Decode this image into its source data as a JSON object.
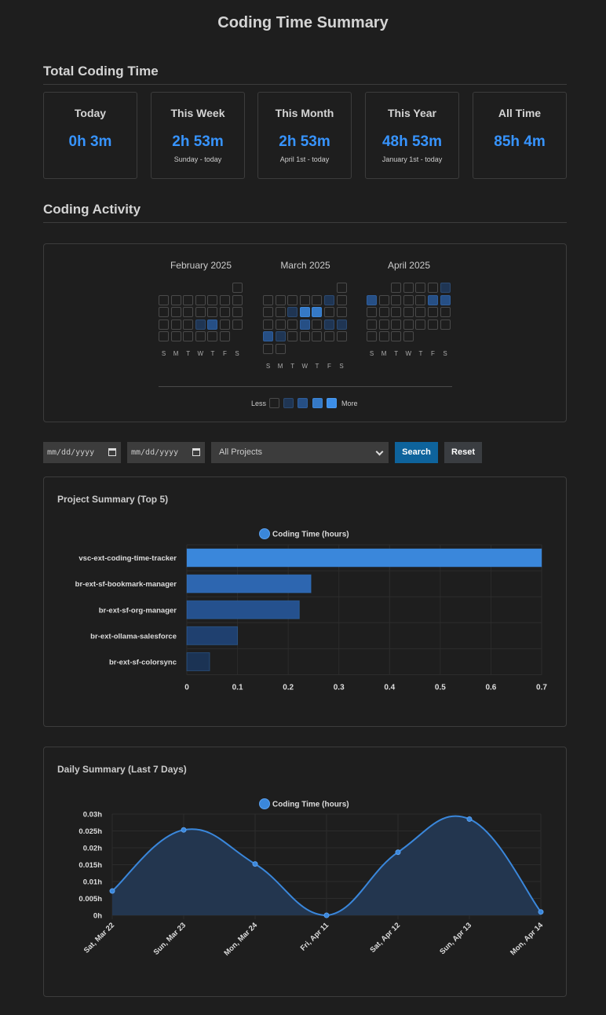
{
  "page_title": "Coding Time Summary",
  "total_section_title": "Total Coding Time",
  "stats": [
    {
      "label": "Today",
      "value": "0h 3m",
      "sub": ""
    },
    {
      "label": "This Week",
      "value": "2h 53m",
      "sub": "Sunday - today"
    },
    {
      "label": "This Month",
      "value": "2h 53m",
      "sub": "April 1st - today"
    },
    {
      "label": "This Year",
      "value": "48h 53m",
      "sub": "January 1st - today"
    },
    {
      "label": "All Time",
      "value": "85h 4m",
      "sub": ""
    }
  ],
  "activity_section_title": "Coding Activity",
  "heatmap": {
    "months": [
      {
        "label": "February 2025",
        "first_weekday": 6,
        "days": 28,
        "levels": {
          "19": 1,
          "20": 2
        }
      },
      {
        "label": "March 2025",
        "first_weekday": 6,
        "days": 31,
        "levels": {
          "7": 1,
          "11": 1,
          "12": 3,
          "13": 3,
          "19": 2,
          "21": 1,
          "22": 1,
          "23": 2,
          "24": 1
        }
      },
      {
        "label": "April 2025",
        "first_weekday": 2,
        "days": 30,
        "levels": {
          "5": 1,
          "6": 2,
          "11": 2,
          "12": 2
        }
      }
    ],
    "weekday_letters": [
      "S",
      "M",
      "T",
      "W",
      "T",
      "F",
      "S"
    ],
    "legend_less": "Less",
    "legend_more": "More",
    "colors": [
      "#1e1e1e",
      "#1f3553",
      "#264f85",
      "#3579c6",
      "#3c8ee8"
    ]
  },
  "filters": {
    "start_date_placeholder": "mm/dd/yyyy",
    "end_date_placeholder": "mm/dd/yyyy",
    "project_selected": "All Projects",
    "search_label": "Search",
    "reset_label": "Reset"
  },
  "project_summary": {
    "title": "Project Summary (Top 5)",
    "chart_data": {
      "type": "bar",
      "orientation": "horizontal",
      "categories": [
        "vsc-ext-coding-time-tracker",
        "br-ext-sf-bookmark-manager",
        "br-ext-sf-org-manager",
        "br-ext-ollama-salesforce",
        "br-ext-sf-colorsync"
      ],
      "series": [
        {
          "name": "Coding Time (hours)",
          "values": [
            0.7,
            0.245,
            0.222,
            0.1,
            0.045
          ]
        }
      ],
      "xlim": [
        0,
        0.7
      ],
      "xticks": [
        "0",
        "0.1",
        "0.2",
        "0.3",
        "0.4",
        "0.5",
        "0.6",
        "0.7"
      ],
      "bar_colors": [
        "#3a87db",
        "#2d66b0",
        "#25518e",
        "#1f406f",
        "#1b3354"
      ],
      "legend_position": "top",
      "grid": true
    }
  },
  "daily_summary": {
    "title": "Daily Summary (Last 7 Days)",
    "chart_data": {
      "type": "area",
      "categories": [
        "Sat, Mar 22",
        "Sun, Mar 23",
        "Mon, Mar 24",
        "Fri, Apr 11",
        "Sat, Apr 12",
        "Sun, Apr 13",
        "Mon, Apr 14"
      ],
      "series": [
        {
          "name": "Coding Time (hours)",
          "values": [
            0.0072,
            0.0253,
            0.0152,
            0.0,
            0.0187,
            0.0285,
            0.001
          ]
        }
      ],
      "ylim": [
        0,
        0.03
      ],
      "yticks": [
        "0h",
        "0.005h",
        "0.01h",
        "0.015h",
        "0.02h",
        "0.025h",
        "0.03h"
      ],
      "legend_position": "top",
      "grid": true,
      "line_color": "#3a87db",
      "fill_color": "#23364f"
    }
  }
}
